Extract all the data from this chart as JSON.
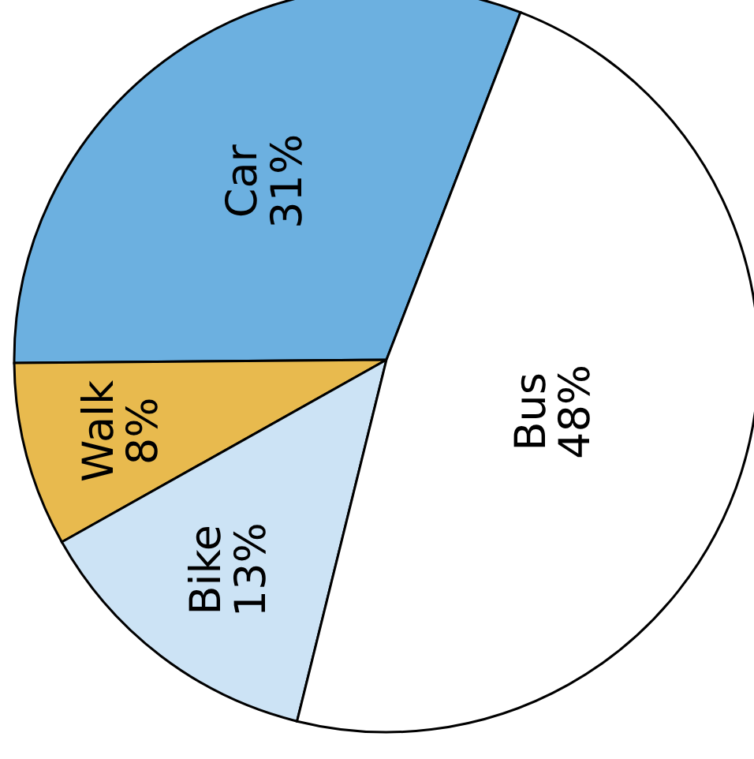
{
  "chart_data": {
    "type": "pie",
    "categories": [
      "Car",
      "Walk",
      "Bike",
      "Bus"
    ],
    "values": [
      31,
      8,
      13,
      48
    ],
    "value_labels": [
      "31%",
      "8%",
      "13%",
      "48%"
    ],
    "colors": [
      "#6cb0e0",
      "#e8ba4e",
      "#cce3f5",
      "#ffffff"
    ]
  }
}
